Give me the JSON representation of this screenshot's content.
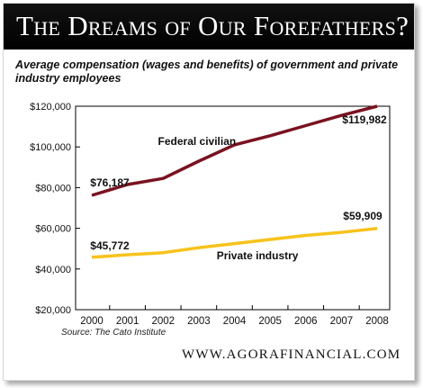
{
  "header": {
    "title": "The Dreams of Our Forefathers?"
  },
  "footer": {
    "source": "Source: The Cato Institute",
    "website": "WWW.AGORAFINANCIAL.COM"
  },
  "colors": {
    "banner": "#000000",
    "federal_line": "#7a1220",
    "private_line": "#f7c31b"
  },
  "chart_data": {
    "type": "line",
    "title": "Average compensation (wages and benefits) of government and private industry employees",
    "x": [
      "2000",
      "2001",
      "2002",
      "2003",
      "2004",
      "2005",
      "2006",
      "2007",
      "2008"
    ],
    "ylim": [
      20000,
      120000
    ],
    "yticks": [
      "$20,000",
      "$40,000",
      "$60,000",
      "$80,000",
      "$100,000",
      "$120,000"
    ],
    "ytick_values": [
      20000,
      40000,
      60000,
      80000,
      100000,
      120000
    ],
    "grid": false,
    "legend": "none",
    "series": [
      {
        "name": "Federal civilian",
        "color": "#7a1220",
        "values": [
          76187,
          81500,
          84500,
          93000,
          101000,
          105500,
          110500,
          115500,
          119982
        ]
      },
      {
        "name": "Private industry",
        "color": "#f7c31b",
        "values": [
          45772,
          47000,
          48000,
          50500,
          52500,
          54500,
          56500,
          58000,
          59909
        ]
      }
    ],
    "annotations": [
      "$76,187",
      "$119,982",
      "$45,772",
      "$59,909"
    ]
  }
}
